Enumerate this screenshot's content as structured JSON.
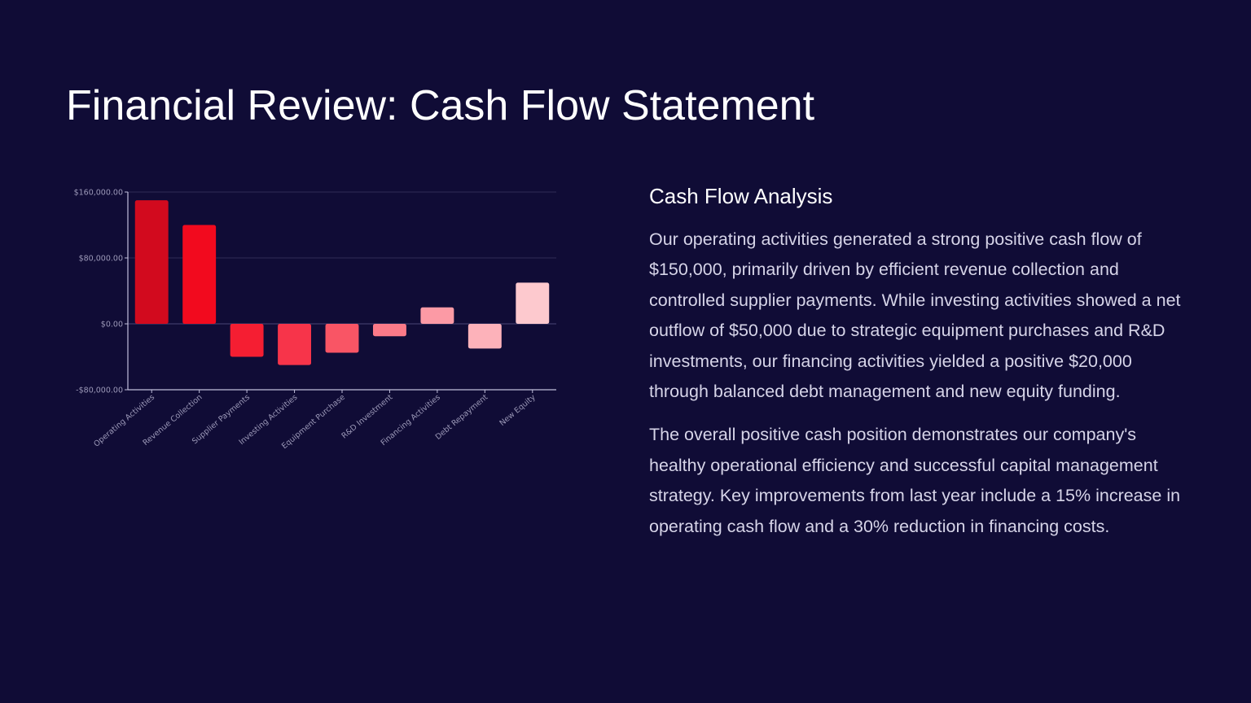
{
  "slide": {
    "title": "Financial Review: Cash Flow Statement"
  },
  "analysis": {
    "heading": "Cash Flow Analysis",
    "paragraphs": [
      "Our operating activities generated a strong positive cash flow of $150,000, primarily driven by efficient revenue collection and controlled supplier payments. While investing activities showed a net outflow of $50,000 due to strategic equipment purchases and R&D investments, our financing activities yielded a positive $20,000 through balanced debt management and new equity funding.",
      "The overall positive cash position demonstrates our company's healthy operational efficiency and successful capital management strategy. Key improvements from last year include a 15% increase in operating cash flow and a 30% reduction in financing costs."
    ]
  },
  "chart_data": {
    "type": "bar",
    "title": "",
    "xlabel": "",
    "ylabel": "",
    "categories": [
      "Operating Activities",
      "Revenue Collection",
      "Supplier Payments",
      "Investing Activities",
      "Equipment Purchase",
      "R&D Investment",
      "Financing Activities",
      "Debt Repayment",
      "New Equity"
    ],
    "values": [
      150000,
      120000,
      -40000,
      -50000,
      -35000,
      -15000,
      20000,
      -30000,
      50000
    ],
    "bar_colors": [
      "#d20a1e",
      "#f20a1e",
      "#f51e32",
      "#f7344a",
      "#f95565",
      "#fb7a88",
      "#fc9aa5",
      "#fdb2ba",
      "#fdc9ce"
    ],
    "ylim": [
      -80000,
      160000
    ],
    "yticks": [
      -80000,
      0,
      80000,
      160000
    ],
    "ytick_labels": [
      "-$80,000.00",
      "$0.00",
      "$80,000.00",
      "$160,000.00"
    ],
    "grid": true,
    "legend": "none"
  },
  "colors": {
    "background": "#100c36",
    "axis": "#c0bedb",
    "gridline": "#2f2b57"
  }
}
